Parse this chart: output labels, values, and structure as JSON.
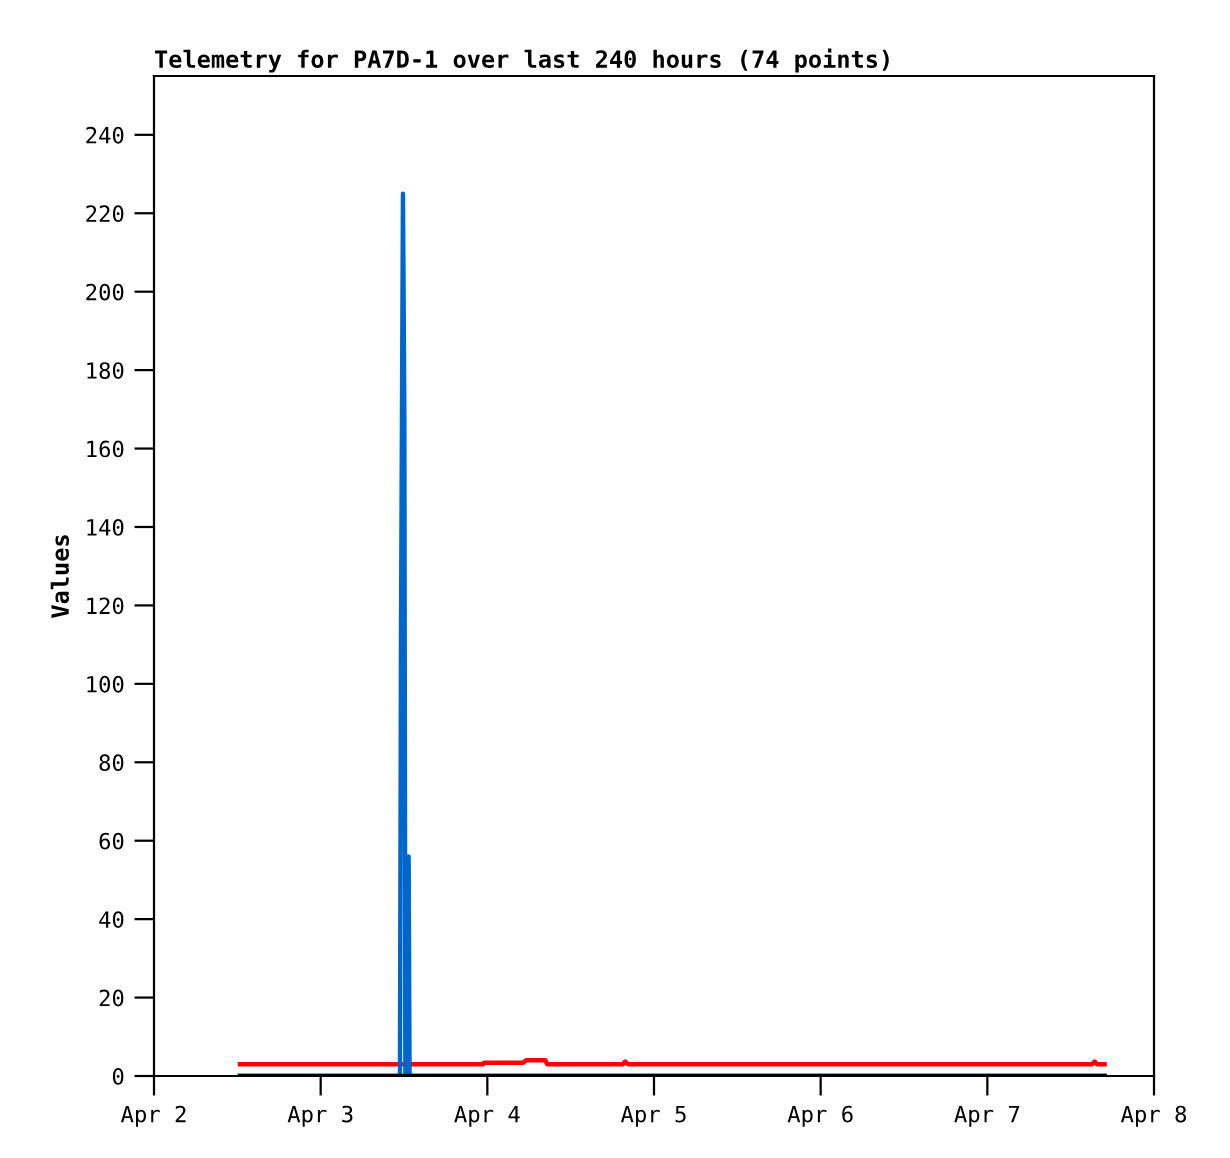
{
  "chart_data": {
    "type": "line",
    "title": "Telemetry for PA7D-1 over last 240 hours (74 points)",
    "ylabel": "Values",
    "series": [
      {
        "color": "#ff0000",
        "x": [
          "--04-02T12:23",
          "--04-03T23:26",
          "--04-03T23:30",
          "--04-04T05:12",
          "--04-04T05:34",
          "--04-04T08:22",
          "--04-04T08:36",
          "--04-04T19:32",
          "--04-04T19:52",
          "--04-04T20:16",
          "--04-07T15:04",
          "--04-07T15:27",
          "--04-07T15:48",
          "--04-07T16:53"
        ],
        "values": [
          3,
          3,
          3.4,
          3.4,
          4,
          4,
          3,
          3,
          3.7,
          3,
          3,
          3.7,
          3,
          3
        ]
      },
      {
        "color": "#0066cc",
        "x": [
          "--04-02T12:23",
          "--04-03T11:25",
          "--04-03T11:34",
          "--04-03T11:51",
          "--04-03T12:03",
          "--04-03T12:12",
          "--04-03T12:26",
          "--04-03T12:40",
          "--04-03T12:48",
          "--04-07T16:53"
        ],
        "values": [
          0,
          0,
          112,
          225,
          168,
          0,
          0,
          56,
          0,
          0
        ]
      },
      {
        "color": "#000000",
        "x": [
          "--04-02T12:23",
          "--04-07T16:53"
        ],
        "values": [
          0,
          0
        ]
      }
    ],
    "xlim": [
      "--04-02",
      "--04-08"
    ],
    "xticks": [
      {
        "value": "--04-02",
        "label": "Apr 2"
      },
      {
        "value": "--04-03",
        "label": "Apr 3"
      },
      {
        "value": "--04-04",
        "label": "Apr 4"
      },
      {
        "value": "--04-05",
        "label": "Apr 5"
      },
      {
        "value": "--04-06",
        "label": "Apr 6"
      },
      {
        "value": "--04-07",
        "label": "Apr 7"
      },
      {
        "value": "--04-08",
        "label": "Apr 8"
      }
    ],
    "ylim": [
      0,
      255
    ],
    "yticks": [
      0,
      20,
      40,
      60,
      80,
      100,
      120,
      140,
      160,
      180,
      200,
      220,
      240
    ],
    "grid": false,
    "legend": false,
    "marker": "none",
    "line_style": "solid"
  }
}
